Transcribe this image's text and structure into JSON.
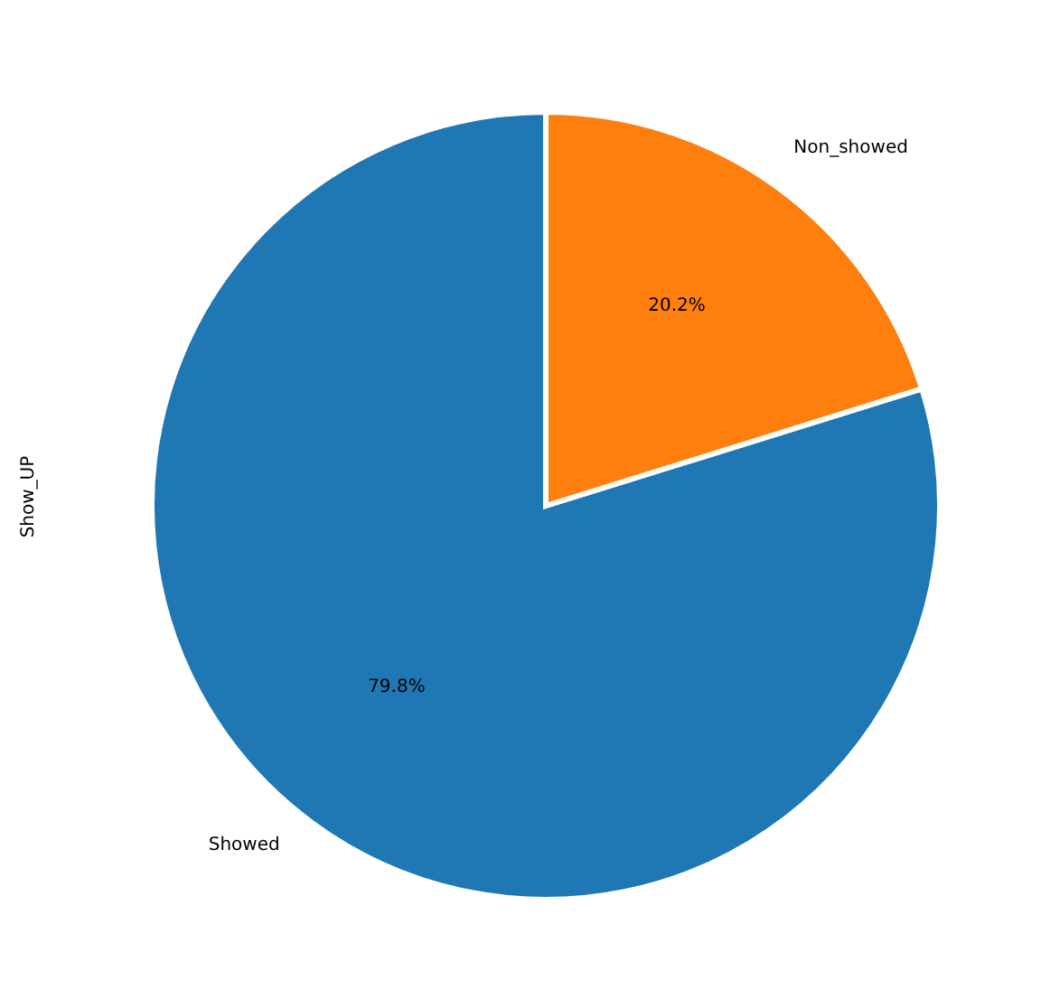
{
  "chart_data": {
    "type": "pie",
    "ylabel": "Show_UP",
    "categories": [
      "Showed",
      "Non_showed"
    ],
    "values": [
      79.8,
      20.2
    ],
    "colors": [
      "#1f77b4",
      "#ff7f0e"
    ],
    "value_labels": [
      "79.8%",
      "20.2%"
    ],
    "legend": false
  }
}
